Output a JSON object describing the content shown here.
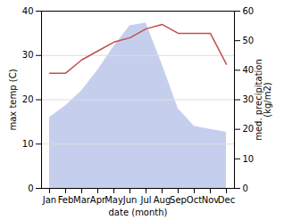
{
  "chart_data": {
    "type": "line",
    "xlabel": "date (month)",
    "ylabel": "max temp (C)",
    "y2label": "med. precipitation\n(kg/m2)",
    "categories": [
      "Jan",
      "Feb",
      "Mar",
      "Apr",
      "May",
      "Jun",
      "Jul",
      "Aug",
      "Sep",
      "Oct",
      "Nov",
      "Dec"
    ],
    "series": [
      {
        "type": "area",
        "axis": "y2",
        "color": "#c5cfed",
        "values": [
          24,
          28,
          33,
          40,
          48,
          55,
          56,
          42,
          27,
          21,
          20,
          19
        ]
      },
      {
        "type": "line",
        "color": "#c0504d",
        "values": [
          26,
          26,
          29,
          31,
          33,
          34,
          36,
          37,
          35,
          35,
          35,
          28
        ]
      }
    ],
    "ylim": [
      0,
      40
    ],
    "yticks": [
      0,
      10,
      20,
      30,
      40
    ],
    "y2lim": [
      0,
      60
    ],
    "y2ticks": [
      0,
      10,
      20,
      30,
      40,
      50,
      60
    ],
    "grid": true
  }
}
